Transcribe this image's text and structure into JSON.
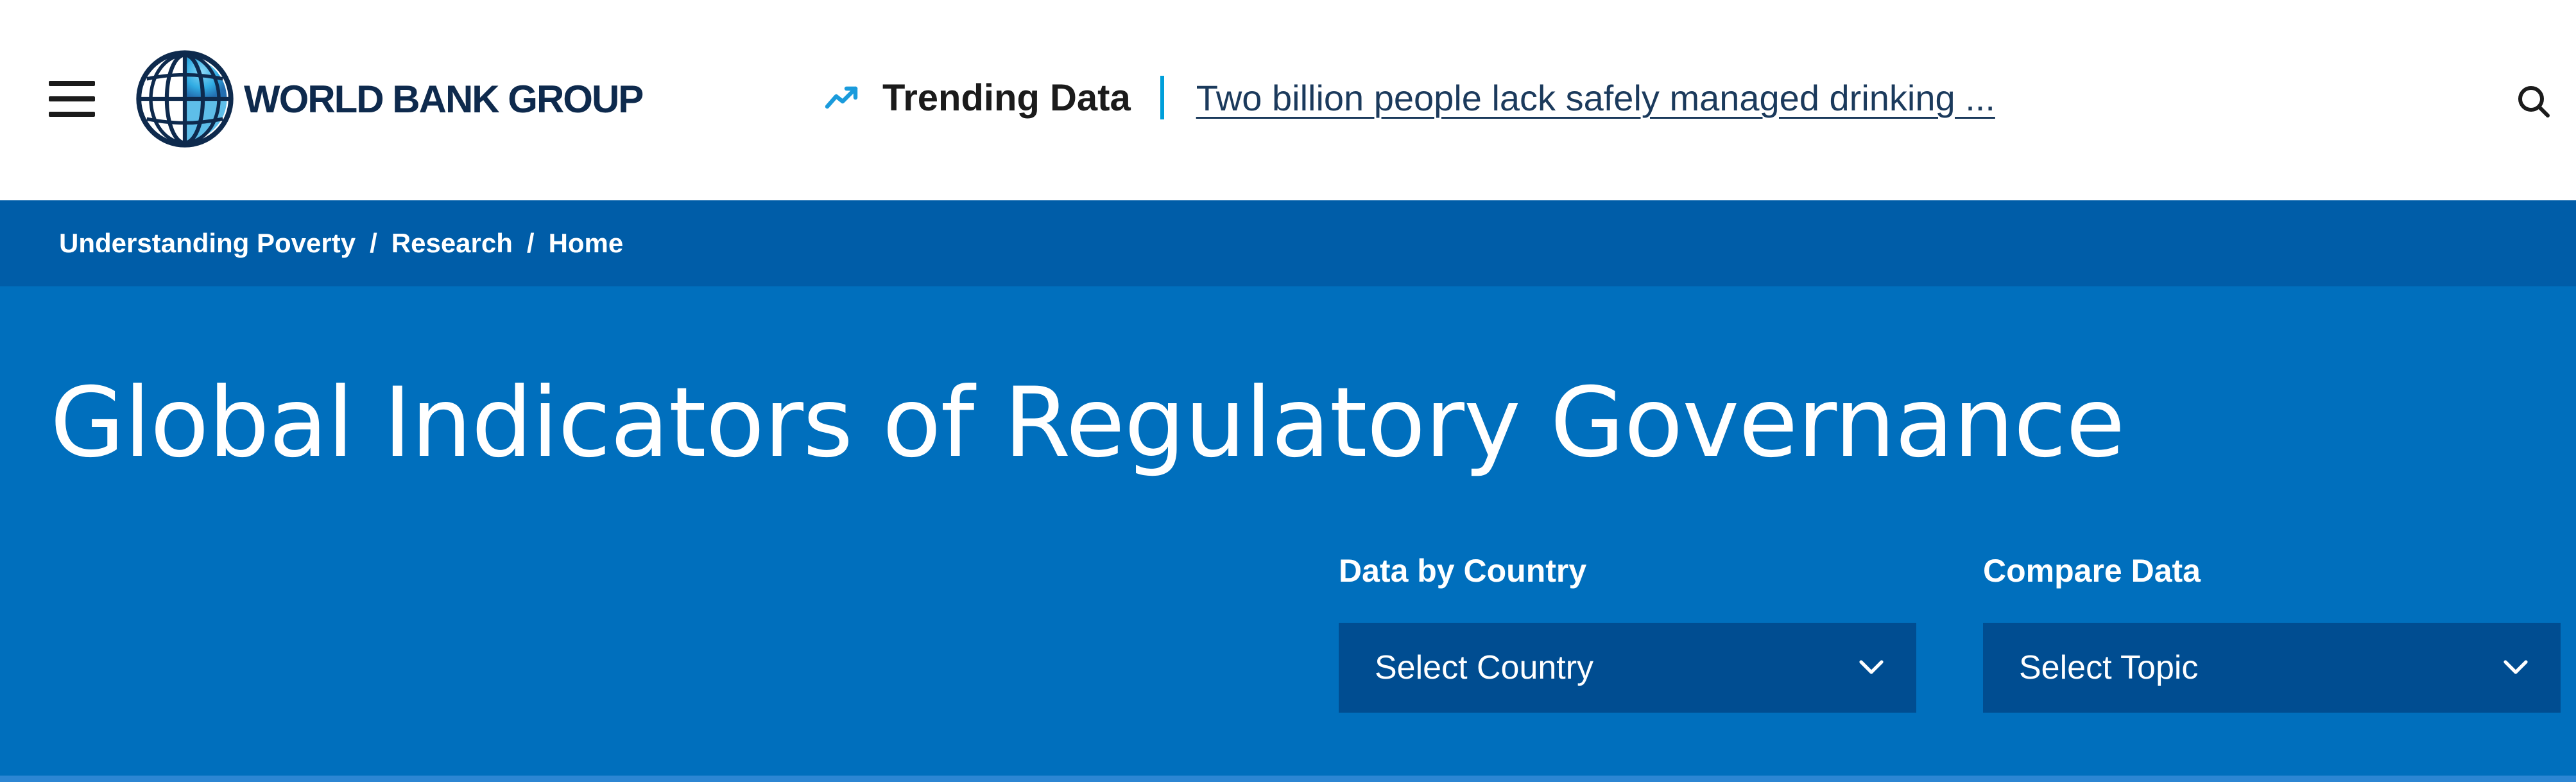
{
  "header": {
    "logo_text": "WORLD BANK GROUP",
    "trending_label": "Trending Data",
    "trending_link": "Two billion people lack safely managed drinking ...",
    "icons": {
      "menu": "menu-icon",
      "logo": "globe-logo-icon",
      "trending": "trending-up-icon",
      "search": "search-icon"
    }
  },
  "breadcrumb": {
    "items": [
      "Understanding Poverty",
      "Research",
      "Home"
    ],
    "separator": "/"
  },
  "hero": {
    "title": "Global Indicators of Regulatory Governance",
    "country": {
      "label": "Data by Country",
      "value": "Select Country"
    },
    "compare": {
      "label": "Compare Data",
      "value": "Select Topic"
    }
  },
  "colors": {
    "header_bg": "#ffffff",
    "breadcrumb_bg": "#005da8",
    "hero_bg": "#006fbd",
    "select_bg": "#004d91",
    "accent": "#009fda",
    "logo_text": "#0e2a4d"
  }
}
